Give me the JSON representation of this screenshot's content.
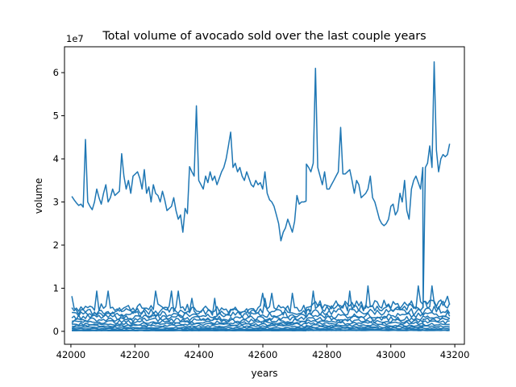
{
  "colors": {
    "series": "#1f77b4",
    "axis": "#000000",
    "background": "#ffffff"
  },
  "chart_data": {
    "type": "line",
    "title": "Total volume of avocado sold over the last couple years",
    "xlabel": "years",
    "ylabel": "volume",
    "y_offset_label": "1e7",
    "xlim": [
      41980,
      43230
    ],
    "ylim": [
      -0.3,
      6.6
    ],
    "x_ticks": [
      42000,
      42200,
      42400,
      42600,
      42800,
      43000,
      43200
    ],
    "y_ticks": [
      0,
      1,
      2,
      3,
      4,
      5,
      6
    ],
    "grid": false,
    "legend": "none",
    "segments": [
      {
        "start": 42003,
        "end": 42364,
        "n": 52
      },
      {
        "start": 42371,
        "end": 42735,
        "n": 52
      },
      {
        "start": 42736,
        "end": 43100,
        "n": 52
      },
      {
        "start": 43101,
        "end": 43184,
        "n": 13
      }
    ],
    "series": [
      {
        "name": "",
        "role": "total",
        "values": [
          [
            3.13,
            3.05,
            2.98,
            2.92,
            2.95,
            2.88,
            4.45,
            3.0,
            2.9,
            2.82,
            3.0,
            3.3,
            3.1,
            2.95,
            3.2,
            3.4,
            3.0,
            3.1,
            3.3,
            3.15,
            3.2,
            3.25,
            4.12,
            3.6,
            3.3,
            3.5,
            3.2,
            3.6,
            3.65,
            3.7,
            3.55,
            3.3,
            3.75,
            3.2,
            3.35,
            3.0,
            3.4,
            3.2,
            3.15,
            3.0,
            3.25,
            3.05,
            2.8,
            2.85,
            2.9,
            3.1,
            2.8,
            2.6,
            2.7,
            2.3,
            2.85,
            2.73
          ],
          [
            3.82,
            3.7,
            3.6,
            5.23,
            3.5,
            3.4,
            3.3,
            3.6,
            3.45,
            3.7,
            3.5,
            3.6,
            3.4,
            3.55,
            3.7,
            3.8,
            4.0,
            4.3,
            4.62,
            3.8,
            3.9,
            3.7,
            3.8,
            3.6,
            3.5,
            3.7,
            3.55,
            3.4,
            3.35,
            3.5,
            3.4,
            3.45,
            3.3,
            3.7,
            3.2,
            3.05,
            3.0,
            2.9,
            2.7,
            2.5,
            2.1,
            2.3,
            2.4,
            2.6,
            2.45,
            2.3,
            2.55,
            3.15,
            2.95,
            3.0,
            3.0,
            3.02
          ],
          [
            3.88,
            3.8,
            3.7,
            3.9,
            6.1,
            3.8,
            3.6,
            3.4,
            3.7,
            3.3,
            3.3,
            3.4,
            3.5,
            3.6,
            3.7,
            4.73,
            3.65,
            3.65,
            3.7,
            3.75,
            3.5,
            3.2,
            3.5,
            3.4,
            3.1,
            3.15,
            3.2,
            3.3,
            3.6,
            3.1,
            3.0,
            2.8,
            2.6,
            2.5,
            2.45,
            2.5,
            2.6,
            2.9,
            2.95,
            2.7,
            2.8,
            3.2,
            3.0,
            3.5,
            2.8,
            2.6,
            3.3,
            3.5,
            3.6,
            3.45,
            3.3,
            3.8
          ],
          [
            0.55,
            3.8,
            3.9,
            4.3,
            3.8,
            6.25,
            4.2,
            3.7,
            4.0,
            4.1,
            4.05,
            4.1,
            4.35
          ]
        ]
      },
      {
        "name": "",
        "role": "region",
        "values": [
          0.55,
          0.52,
          0.62,
          0.7
        ]
      },
      {
        "name": "",
        "role": "region",
        "values": [
          0.48,
          0.45,
          0.55,
          0.62
        ]
      },
      {
        "name": "",
        "role": "region",
        "values": [
          0.4,
          0.38,
          0.45,
          0.5
        ]
      },
      {
        "name": "",
        "role": "region",
        "values": [
          0.33,
          0.3,
          0.36,
          0.4
        ]
      },
      {
        "name": "",
        "role": "region",
        "values": [
          0.27,
          0.25,
          0.3,
          0.33
        ]
      },
      {
        "name": "",
        "role": "region",
        "values": [
          0.22,
          0.2,
          0.24,
          0.27
        ]
      },
      {
        "name": "",
        "role": "region",
        "values": [
          0.17,
          0.16,
          0.19,
          0.21
        ]
      },
      {
        "name": "",
        "role": "region",
        "values": [
          0.13,
          0.12,
          0.14,
          0.16
        ]
      },
      {
        "name": "",
        "role": "region",
        "values": [
          0.09,
          0.08,
          0.1,
          0.11
        ]
      },
      {
        "name": "",
        "role": "region",
        "values": [
          0.06,
          0.05,
          0.07,
          0.07
        ]
      },
      {
        "name": "",
        "role": "region",
        "values": [
          0.03,
          0.03,
          0.04,
          0.04
        ]
      },
      {
        "name": "",
        "role": "region",
        "values": [
          0.015,
          0.015,
          0.02,
          0.02
        ]
      }
    ]
  }
}
